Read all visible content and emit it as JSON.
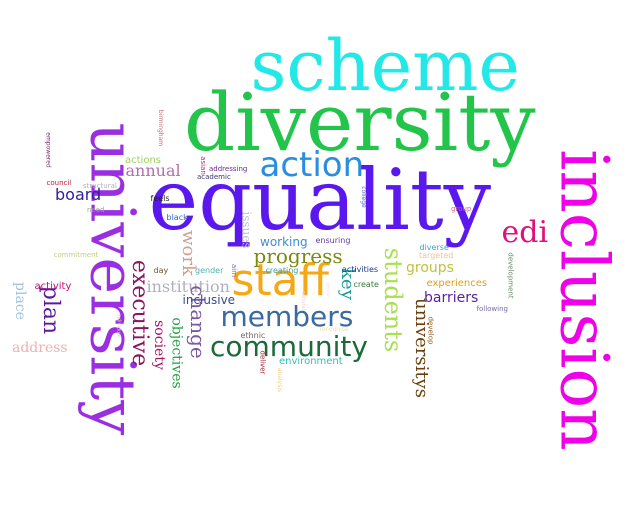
{
  "words": [
    {
      "text": "scheme",
      "color": "#22e8e8"
    },
    {
      "text": "diversity",
      "color": "#22c44a"
    },
    {
      "text": "equality",
      "color": "#5b18ee"
    },
    {
      "text": "university",
      "color": "#9a2ee0"
    },
    {
      "text": "inclusion",
      "color": "#f000e8"
    },
    {
      "text": "action",
      "color": "#2a8de0"
    },
    {
      "text": "staff",
      "color": "#f5a814"
    },
    {
      "text": "edi",
      "color": "#e0107a"
    },
    {
      "text": "members",
      "color": "#3a6aa0"
    },
    {
      "text": "community",
      "color": "#1c6a3a"
    },
    {
      "text": "students",
      "color": "#a8e050"
    },
    {
      "text": "executive",
      "color": "#8a1460"
    },
    {
      "text": "plan",
      "color": "#5a1a9a"
    },
    {
      "text": "universitys",
      "color": "#6a4010"
    },
    {
      "text": "progress",
      "color": "#7a8a10"
    },
    {
      "text": "institution",
      "color": "#b0b0c0"
    },
    {
      "text": "change",
      "color": "#7a5aa0"
    },
    {
      "text": "work",
      "color": "#d0a090"
    },
    {
      "text": "annual",
      "color": "#b070b0"
    },
    {
      "text": "key",
      "color": "#1a9a9a"
    },
    {
      "text": "groups",
      "color": "#c0c040"
    },
    {
      "text": "barriers",
      "color": "#5a20a0"
    },
    {
      "text": "society",
      "color": "#a01060"
    },
    {
      "text": "objectives",
      "color": "#20a040"
    },
    {
      "text": "inclusive",
      "color": "#3a4a8a"
    },
    {
      "text": "place",
      "color": "#a0c0e0"
    },
    {
      "text": "address",
      "color": "#f0b0b0"
    },
    {
      "text": "board",
      "color": "#3020a0"
    },
    {
      "text": "working",
      "color": "#3a90d0"
    },
    {
      "text": "issues",
      "color": "#c0c0d0"
    },
    {
      "text": "actions",
      "color": "#a0d060"
    },
    {
      "text": "environment",
      "color": "#30c0c0"
    },
    {
      "text": "experiences",
      "color": "#e0a020"
    },
    {
      "text": "activity",
      "color": "#c01070"
    },
    {
      "text": "ensuring",
      "color": "#6040a0"
    },
    {
      "text": "diverse",
      "color": "#40a0d0"
    },
    {
      "text": "targeted",
      "color": "#f0c0a0"
    },
    {
      "text": "activities",
      "color": "#1a3a8a"
    },
    {
      "text": "creating",
      "color": "#40a0a0"
    },
    {
      "text": "create",
      "color": "#3a7a3a"
    },
    {
      "text": "gender",
      "color": "#50b0b0"
    },
    {
      "text": "ethnic",
      "color": "#6a6a6a"
    },
    {
      "text": "aim",
      "color": "#8a60c0"
    },
    {
      "text": "day",
      "color": "#6a5a30"
    },
    {
      "text": "commitment",
      "color": "#c0d080"
    },
    {
      "text": "black",
      "color": "#3060d0"
    },
    {
      "text": "feels",
      "color": "#202020"
    },
    {
      "text": "need",
      "color": "#a0a0a0"
    },
    {
      "text": "structural",
      "color": "#b0b0b0"
    },
    {
      "text": "council",
      "color": "#c02040"
    },
    {
      "text": "empowered",
      "color": "#7a2a6a"
    },
    {
      "text": "birmingham",
      "color": "#c07070"
    },
    {
      "text": "asian",
      "color": "#c02080"
    },
    {
      "text": "addressing",
      "color": "#6a2a8a"
    },
    {
      "text": "academic",
      "color": "#3a3a6a"
    },
    {
      "text": "college",
      "color": "#5a60d0"
    },
    {
      "text": "group",
      "color": "#d06090"
    },
    {
      "text": "development",
      "color": "#6a8a6a"
    },
    {
      "text": "following",
      "color": "#7a6ab0"
    },
    {
      "text": "develop",
      "color": "#8a5a20"
    },
    {
      "text": "deliver",
      "color": "#a02030"
    },
    {
      "text": "analysis",
      "color": "#f0d080"
    },
    {
      "text": "recognise",
      "color": "#f0e0b0"
    },
    {
      "text": "individual",
      "color": "#e0c0d0"
    },
    {
      "text": "sector",
      "color": "#f0e0e0"
    },
    {
      "text": "cultural",
      "color": "#f0d0d0"
    }
  ]
}
